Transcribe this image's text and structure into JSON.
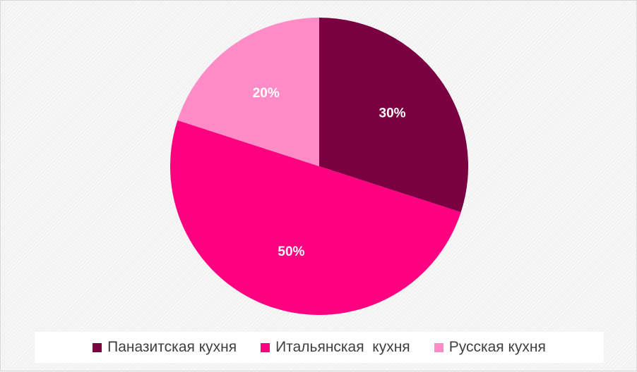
{
  "chart_data": {
    "type": "pie",
    "title": "",
    "categories": [
      "Паназитская кухня",
      "Итальянская  кухня",
      "Русская кухня"
    ],
    "values": [
      30,
      50,
      20
    ],
    "data_labels": [
      "30%",
      "50%",
      "20%"
    ],
    "colors": [
      "#7b0041",
      "#ff0080",
      "#ff8cc6"
    ],
    "start_angle_deg": 0,
    "direction": "clockwise",
    "legend_position": "bottom"
  }
}
